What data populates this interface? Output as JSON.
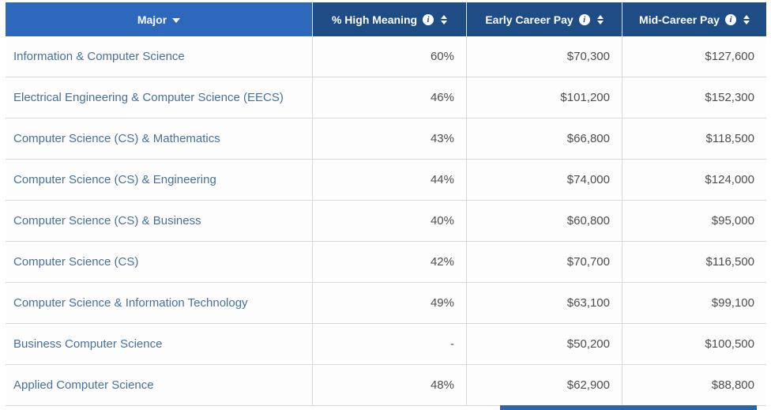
{
  "table": {
    "columns": [
      {
        "label": "Major",
        "sorted": "desc",
        "info": false,
        "sortable": true
      },
      {
        "label": "% High Meaning",
        "info": true,
        "sortable": true
      },
      {
        "label": "Early Career Pay",
        "info": true,
        "sortable": true
      },
      {
        "label": "Mid-Career Pay",
        "info": true,
        "sortable": true
      }
    ],
    "rows": [
      {
        "major": "Information & Computer Science",
        "high_meaning": "60%",
        "early_career_pay": "$70,300",
        "mid_career_pay": "$127,600"
      },
      {
        "major": "Electrical Engineering & Computer Science (EECS)",
        "high_meaning": "46%",
        "early_career_pay": "$101,200",
        "mid_career_pay": "$152,300"
      },
      {
        "major": "Computer Science (CS) & Mathematics",
        "high_meaning": "43%",
        "early_career_pay": "$66,800",
        "mid_career_pay": "$118,500"
      },
      {
        "major": "Computer Science (CS) & Engineering",
        "high_meaning": "44%",
        "early_career_pay": "$74,000",
        "mid_career_pay": "$124,000"
      },
      {
        "major": "Computer Science (CS) & Business",
        "high_meaning": "40%",
        "early_career_pay": "$60,800",
        "mid_career_pay": "$95,000"
      },
      {
        "major": "Computer Science (CS)",
        "high_meaning": "42%",
        "early_career_pay": "$70,700",
        "mid_career_pay": "$116,500"
      },
      {
        "major": "Computer Science & Information Technology",
        "high_meaning": "49%",
        "early_career_pay": "$63,100",
        "mid_career_pay": "$99,100"
      },
      {
        "major": "Business Computer Science",
        "high_meaning": "-",
        "early_career_pay": "$50,200",
        "mid_career_pay": "$100,500"
      },
      {
        "major": "Applied Computer Science",
        "high_meaning": "48%",
        "early_career_pay": "$62,900",
        "mid_career_pay": "$88,800"
      }
    ]
  },
  "icons": {
    "info": "i"
  },
  "colors": {
    "header_major_bg": "#2e68bc",
    "header_metric_bg": "#1e4c85",
    "header_text": "#ffffff",
    "major_link_text": "#46719c",
    "value_text": "#4d4d4d",
    "row_border": "#d9d9d9",
    "bottom_strip": "#2c63b0"
  }
}
